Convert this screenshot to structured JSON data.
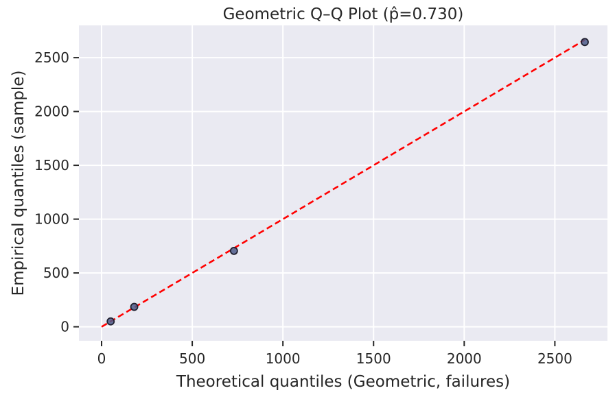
{
  "chart_data": {
    "type": "scatter",
    "title": "Geometric Q–Q Plot (p̂=0.730)",
    "xlabel": "Theoretical quantiles (Geometric, failures)",
    "ylabel": "Empirical quantiles (sample)",
    "xlim": [
      -125,
      2790
    ],
    "ylim": [
      -130,
      2800
    ],
    "xticks": [
      0,
      500,
      1000,
      1500,
      2000,
      2500
    ],
    "yticks": [
      0,
      500,
      1000,
      1500,
      2000,
      2500
    ],
    "xtick_labels": [
      "0",
      "500",
      "1000",
      "1500",
      "2000",
      "2500"
    ],
    "ytick_labels": [
      "0",
      "500",
      "1000",
      "1500",
      "2000",
      "2500"
    ],
    "grid": true,
    "background_color": "#eaeaf2",
    "series": [
      {
        "kind": "points",
        "color": "#4c5a8a",
        "edge_color": "#1f1f2e",
        "points": [
          {
            "x": 50,
            "y": 50
          },
          {
            "x": 180,
            "y": 185
          },
          {
            "x": 730,
            "y": 705
          },
          {
            "x": 2665,
            "y": 2645
          }
        ]
      },
      {
        "kind": "reference-line",
        "color": "#ff0000",
        "style": "dashed",
        "from": {
          "x": 0,
          "y": 0
        },
        "to": {
          "x": 2665,
          "y": 2665
        }
      }
    ]
  }
}
